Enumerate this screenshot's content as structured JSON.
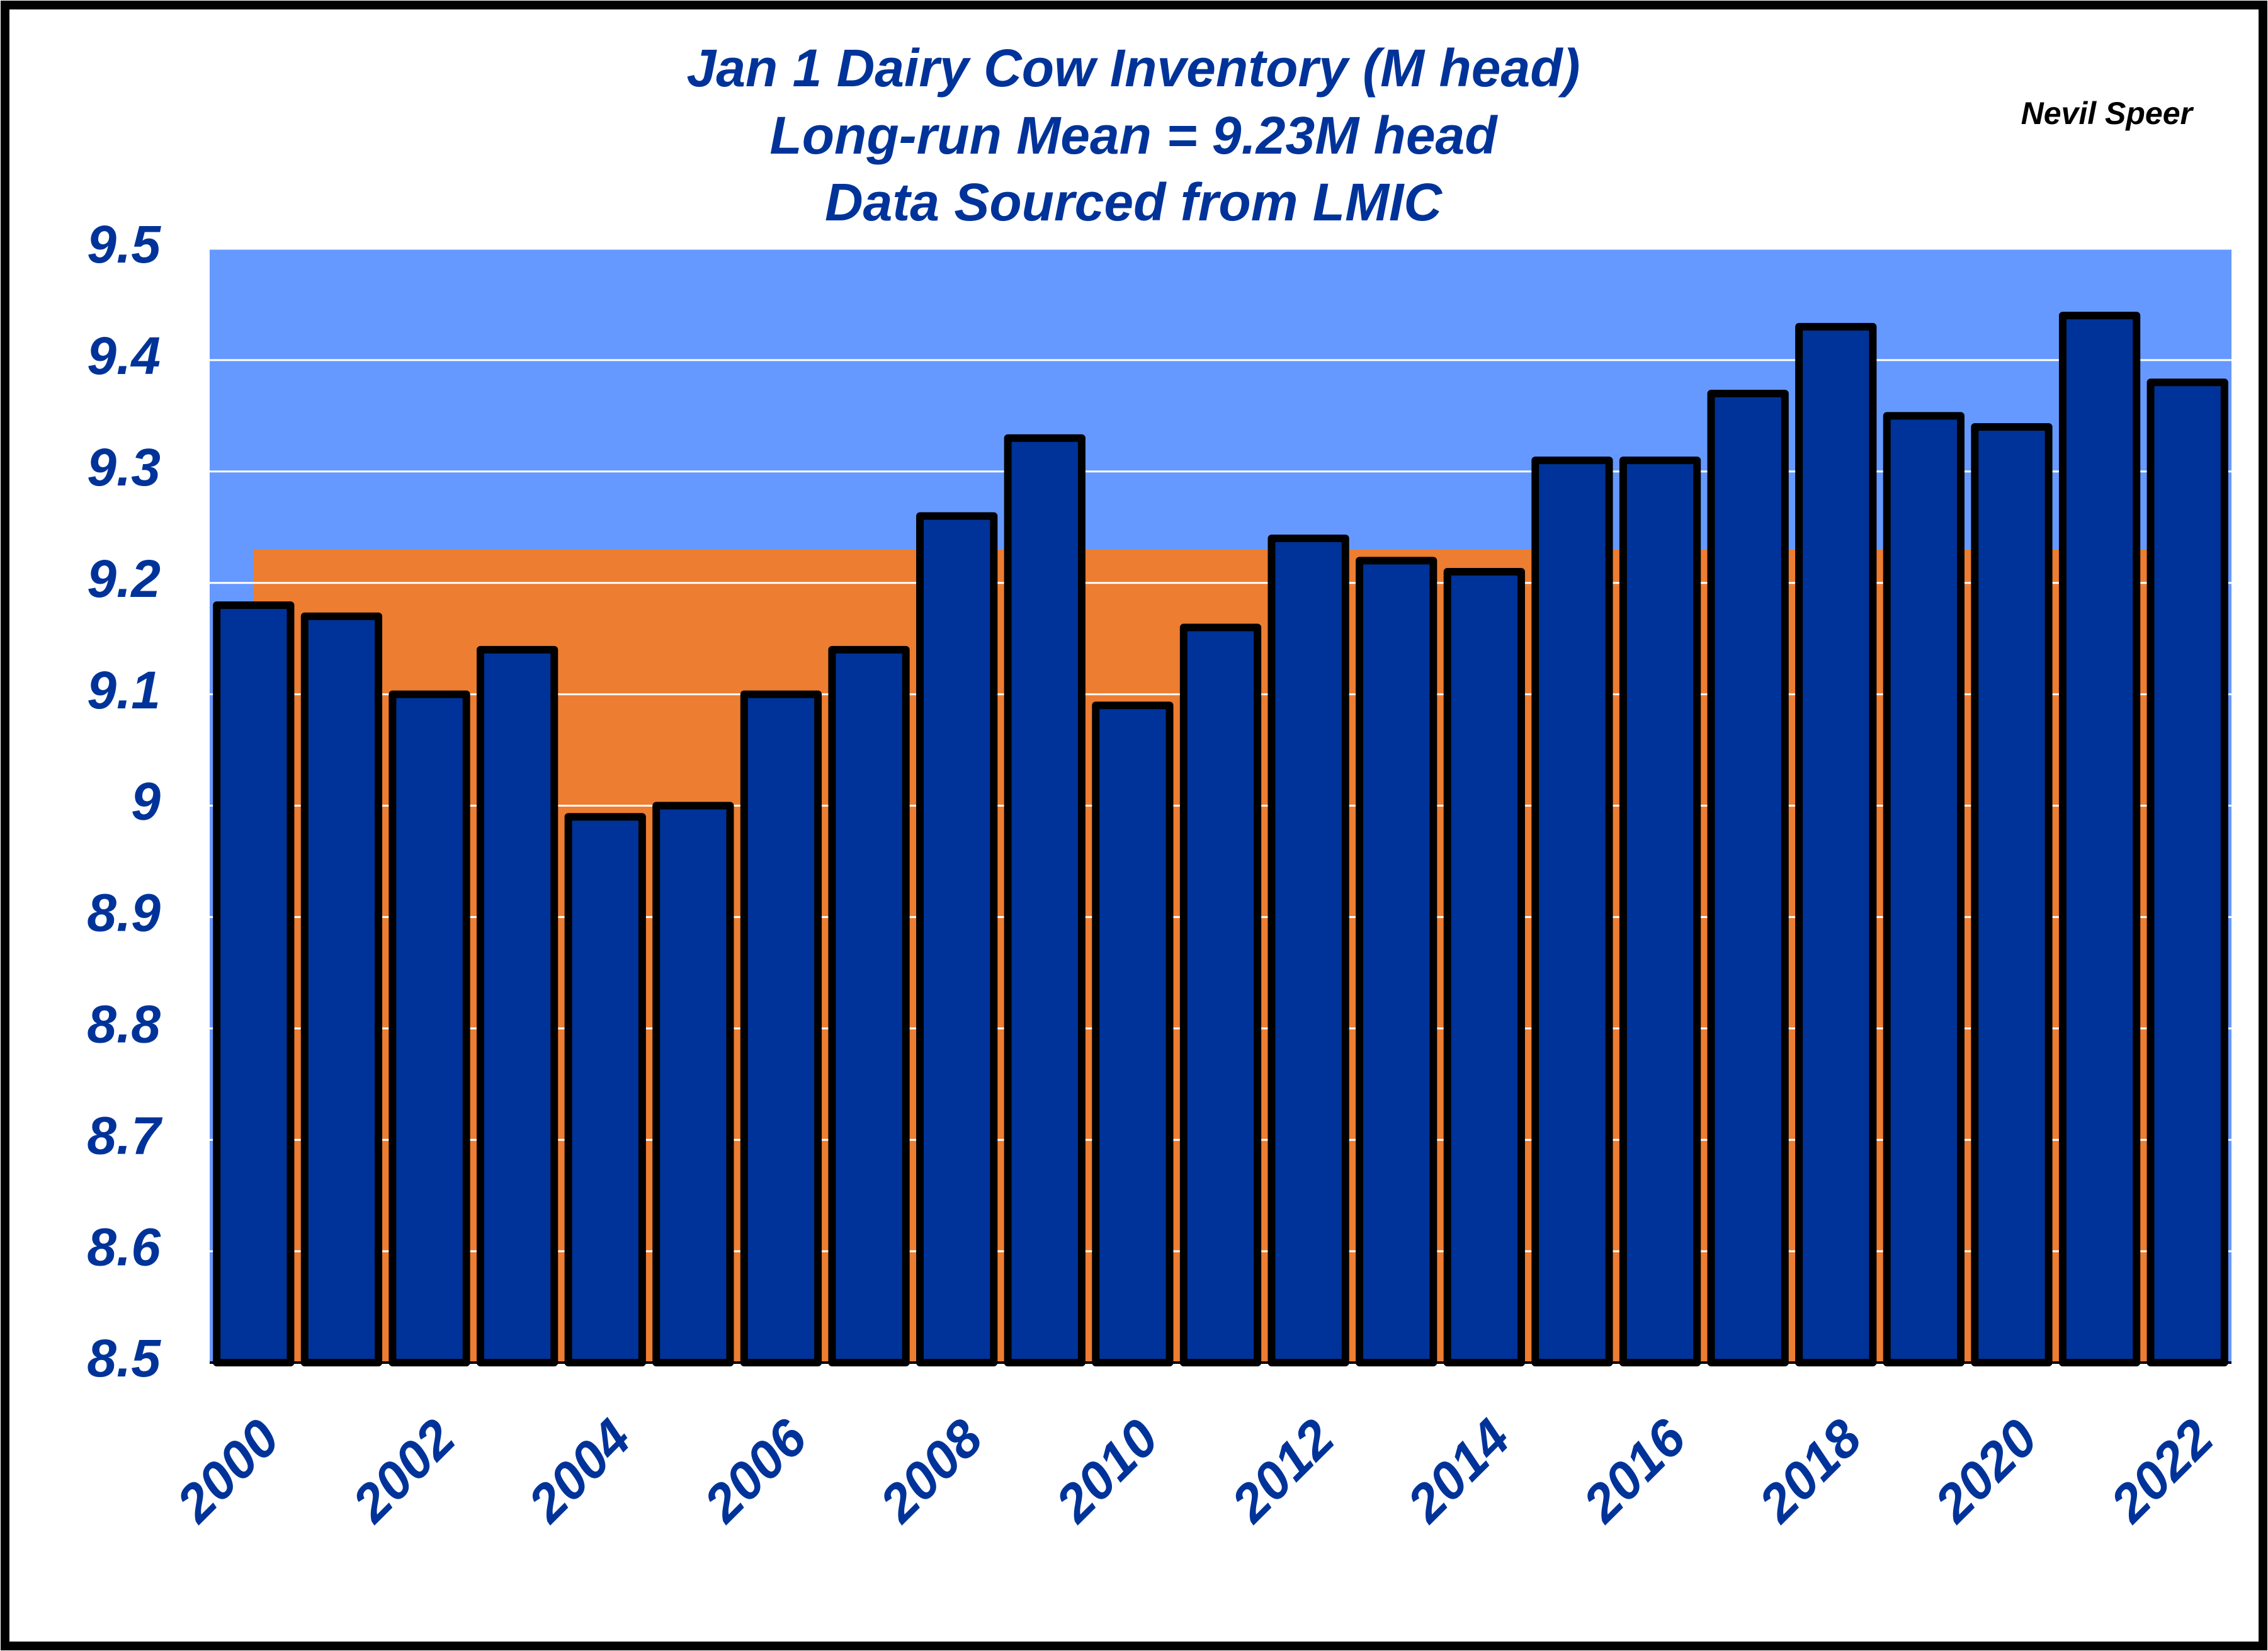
{
  "chart_data": {
    "type": "bar",
    "title": "Jan 1 Dairy Cow Inventory (M head)",
    "subtitles": [
      "Long-run Mean = 9.23M head",
      "Data Sourced from LMIC"
    ],
    "author": "Nevil Speer",
    "categories": [
      "2000",
      null,
      "2002",
      null,
      "2004",
      null,
      "2006",
      null,
      "2008",
      null,
      "2010",
      null,
      "2012",
      null,
      "2014",
      null,
      "2016",
      null,
      "2018",
      null,
      "2020",
      null,
      "2022"
    ],
    "values": [
      9.18,
      9.17,
      9.1,
      9.14,
      8.99,
      9.0,
      9.1,
      9.14,
      9.26,
      9.33,
      9.09,
      9.16,
      9.24,
      9.22,
      9.21,
      9.31,
      9.31,
      9.37,
      9.43,
      9.35,
      9.34,
      9.44,
      9.38
    ],
    "color": "#003399",
    "mean": 9.23,
    "mean_color": "#ed7d31",
    "background": "#6699ff",
    "ylim": [
      8.5,
      9.5
    ],
    "yticks": [
      8.5,
      8.6,
      8.7,
      8.8,
      8.9,
      9,
      9.1,
      9.2,
      9.3,
      9.4,
      9.5
    ],
    "grid": true
  }
}
